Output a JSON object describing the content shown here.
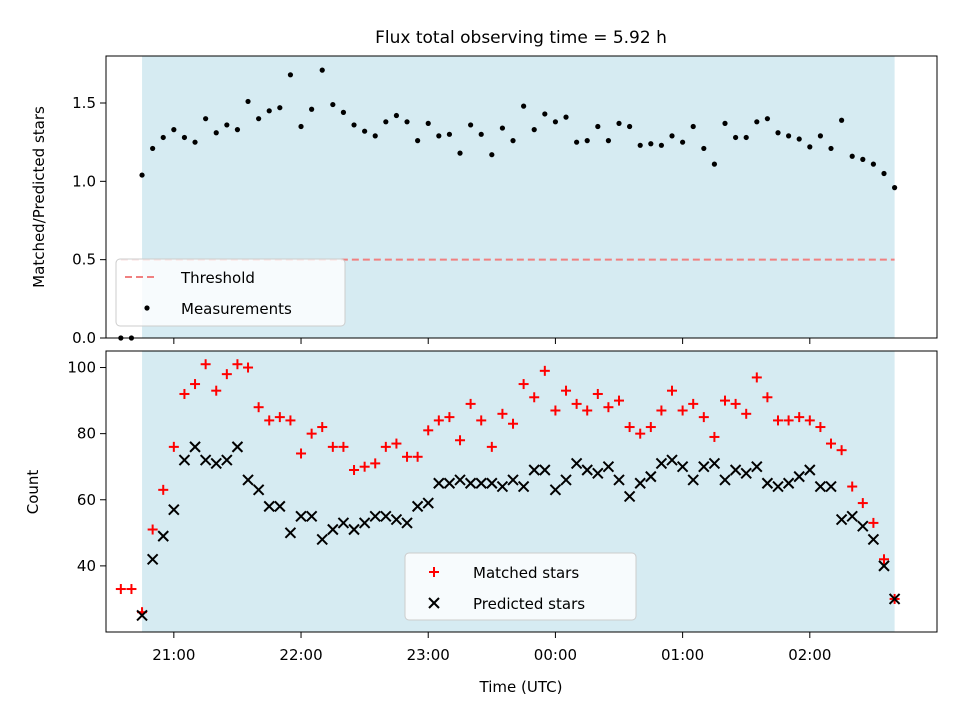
{
  "figure_title": "Flux total observing time = 5.92 h",
  "colors": {
    "shade": "#add8e6",
    "threshold": "#f08080",
    "measurement": "#000000",
    "matched": "#ff0000",
    "predicted": "#000000"
  },
  "chart_data": [
    {
      "type": "scatter",
      "title": "Flux total observing time = 5.92 h",
      "ylabel": "Matched/Predicted stars",
      "ylim": [
        0,
        1.8
      ],
      "yticks": [
        "0.0",
        "0.5",
        "1.0",
        "1.5"
      ],
      "xlim": [
        "20:28",
        "03:00"
      ],
      "shaded_interval": [
        "20:45",
        "02:40"
      ],
      "threshold": {
        "label": "Threshold",
        "value": 0.5,
        "x_range": [
          "20:35",
          "02:40"
        ]
      },
      "legend": {
        "position": "lower-left",
        "entries": [
          "Threshold",
          "Measurements"
        ]
      },
      "series": [
        {
          "name": "Measurements",
          "x": [
            "20:35",
            "20:40",
            "20:45",
            "20:50",
            "20:55",
            "21:00",
            "21:05",
            "21:10",
            "21:15",
            "21:20",
            "21:25",
            "21:30",
            "21:35",
            "21:40",
            "21:45",
            "21:50",
            "21:55",
            "22:00",
            "22:05",
            "22:10",
            "22:15",
            "22:20",
            "22:25",
            "22:30",
            "22:35",
            "22:40",
            "22:45",
            "22:50",
            "22:55",
            "23:00",
            "23:05",
            "23:10",
            "23:15",
            "23:20",
            "23:25",
            "23:30",
            "23:35",
            "23:40",
            "23:45",
            "23:50",
            "23:55",
            "00:00",
            "00:05",
            "00:10",
            "00:15",
            "00:20",
            "00:25",
            "00:30",
            "00:35",
            "00:40",
            "00:45",
            "00:50",
            "00:55",
            "01:00",
            "01:05",
            "01:10",
            "01:15",
            "01:20",
            "01:25",
            "01:30",
            "01:35",
            "01:40",
            "01:45",
            "01:50",
            "01:55",
            "02:00",
            "02:05",
            "02:10",
            "02:15",
            "02:20",
            "02:25",
            "02:30",
            "02:35",
            "02:40"
          ],
          "y": [
            0.0,
            0.0,
            1.04,
            1.21,
            1.28,
            1.33,
            1.28,
            1.25,
            1.4,
            1.31,
            1.36,
            1.33,
            1.51,
            1.4,
            1.45,
            1.47,
            1.68,
            1.35,
            1.46,
            1.71,
            1.49,
            1.44,
            1.36,
            1.32,
            1.29,
            1.38,
            1.42,
            1.38,
            1.26,
            1.37,
            1.29,
            1.3,
            1.18,
            1.36,
            1.3,
            1.17,
            1.34,
            1.26,
            1.48,
            1.33,
            1.43,
            1.38,
            1.41,
            1.25,
            1.26,
            1.35,
            1.26,
            1.37,
            1.35,
            1.23,
            1.24,
            1.23,
            1.29,
            1.25,
            1.35,
            1.21,
            1.11,
            1.37,
            1.28,
            1.28,
            1.38,
            1.4,
            1.31,
            1.29,
            1.27,
            1.22,
            1.29,
            1.21,
            1.39,
            1.16,
            1.14,
            1.11,
            1.05,
            0.96
          ]
        }
      ]
    },
    {
      "type": "scatter",
      "xlabel": "Time (UTC)",
      "ylabel": "Count",
      "ylim": [
        20,
        105
      ],
      "yticks": [
        "40",
        "60",
        "80",
        "100"
      ],
      "xlim": [
        "20:28",
        "03:00"
      ],
      "xticks": [
        "21:00",
        "22:00",
        "23:00",
        "00:00",
        "01:00",
        "02:00"
      ],
      "shaded_interval": [
        "20:45",
        "02:40"
      ],
      "legend": {
        "position": "lower-center",
        "entries": [
          "Matched stars",
          "Predicted stars"
        ]
      },
      "series": [
        {
          "name": "Matched stars",
          "x": [
            "20:35",
            "20:40",
            "20:45",
            "20:50",
            "20:55",
            "21:00",
            "21:05",
            "21:10",
            "21:15",
            "21:20",
            "21:25",
            "21:30",
            "21:35",
            "21:40",
            "21:45",
            "21:50",
            "21:55",
            "22:00",
            "22:05",
            "22:10",
            "22:15",
            "22:20",
            "22:25",
            "22:30",
            "22:35",
            "22:40",
            "22:45",
            "22:50",
            "22:55",
            "23:00",
            "23:05",
            "23:10",
            "23:15",
            "23:20",
            "23:25",
            "23:30",
            "23:35",
            "23:40",
            "23:45",
            "23:50",
            "23:55",
            "00:00",
            "00:05",
            "00:10",
            "00:15",
            "00:20",
            "00:25",
            "00:30",
            "00:35",
            "00:40",
            "00:45",
            "00:50",
            "00:55",
            "01:00",
            "01:05",
            "01:10",
            "01:15",
            "01:20",
            "01:25",
            "01:30",
            "01:35",
            "01:40",
            "01:45",
            "01:50",
            "01:55",
            "02:00",
            "02:05",
            "02:10",
            "02:15",
            "02:20",
            "02:25",
            "02:30",
            "02:35",
            "02:40"
          ],
          "y": [
            33,
            33,
            26,
            51,
            63,
            76,
            92,
            95,
            101,
            93,
            98,
            101,
            100,
            88,
            84,
            85,
            84,
            74,
            80,
            82,
            76,
            76,
            69,
            70,
            71,
            76,
            77,
            73,
            73,
            81,
            84,
            85,
            78,
            89,
            84,
            76,
            86,
            83,
            95,
            91,
            99,
            87,
            93,
            89,
            87,
            92,
            88,
            90,
            82,
            80,
            82,
            87,
            93,
            87,
            89,
            85,
            79,
            90,
            89,
            86,
            97,
            91,
            84,
            84,
            85,
            84,
            82,
            77,
            75,
            64,
            59,
            53,
            42,
            30
          ]
        },
        {
          "name": "Predicted stars",
          "x": [
            "20:45",
            "20:50",
            "20:55",
            "21:00",
            "21:05",
            "21:10",
            "21:15",
            "21:20",
            "21:25",
            "21:30",
            "21:35",
            "21:40",
            "21:45",
            "21:50",
            "21:55",
            "22:00",
            "22:05",
            "22:10",
            "22:15",
            "22:20",
            "22:25",
            "22:30",
            "22:35",
            "22:40",
            "22:45",
            "22:50",
            "22:55",
            "23:00",
            "23:05",
            "23:10",
            "23:15",
            "23:20",
            "23:25",
            "23:30",
            "23:35",
            "23:40",
            "23:45",
            "23:50",
            "23:55",
            "00:00",
            "00:05",
            "00:10",
            "00:15",
            "00:20",
            "00:25",
            "00:30",
            "00:35",
            "00:40",
            "00:45",
            "00:50",
            "00:55",
            "01:00",
            "01:05",
            "01:10",
            "01:15",
            "01:20",
            "01:25",
            "01:30",
            "01:35",
            "01:40",
            "01:45",
            "01:50",
            "01:55",
            "02:00",
            "02:05",
            "02:10",
            "02:15",
            "02:20",
            "02:25",
            "02:30",
            "02:35",
            "02:40"
          ],
          "y": [
            25,
            42,
            49,
            57,
            72,
            76,
            72,
            71,
            72,
            76,
            66,
            63,
            58,
            58,
            50,
            55,
            55,
            48,
            51,
            53,
            51,
            53,
            55,
            55,
            54,
            53,
            58,
            59,
            65,
            65,
            66,
            65,
            65,
            65,
            64,
            66,
            64,
            69,
            69,
            63,
            66,
            71,
            69,
            68,
            70,
            66,
            61,
            65,
            67,
            71,
            72,
            70,
            66,
            70,
            71,
            66,
            69,
            68,
            70,
            65,
            64,
            65,
            67,
            69,
            64,
            64,
            54,
            55,
            52,
            48,
            40,
            30
          ]
        }
      ]
    }
  ]
}
